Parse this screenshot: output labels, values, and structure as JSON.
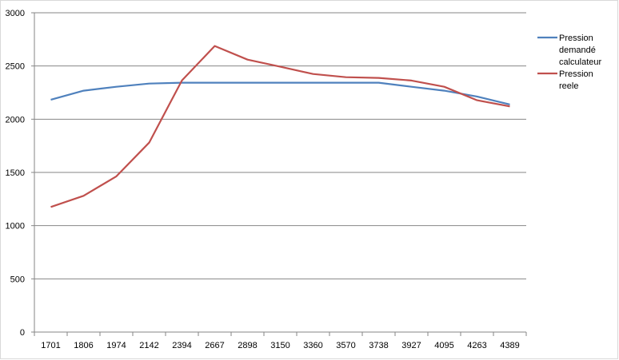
{
  "chart_data": {
    "type": "line",
    "categories": [
      "1701",
      "1806",
      "1974",
      "2142",
      "2394",
      "2667",
      "2898",
      "3150",
      "3360",
      "3570",
      "3738",
      "3927",
      "4095",
      "4263",
      "4389"
    ],
    "series": [
      {
        "name": "Pression demandé calculateur",
        "color": "#4f81bd",
        "values": [
          2183,
          2268,
          2305,
          2335,
          2343,
          2343,
          2343,
          2343,
          2343,
          2343,
          2343,
          2305,
          2268,
          2213,
          2138
        ]
      },
      {
        "name": "Pression reele",
        "color": "#c0504d",
        "values": [
          1175,
          1280,
          1463,
          1780,
          2365,
          2688,
          2560,
          2493,
          2425,
          2395,
          2388,
          2363,
          2305,
          2178,
          2120
        ]
      }
    ],
    "yticks": [
      "0",
      "500",
      "1000",
      "1500",
      "2000",
      "2500",
      "3000"
    ],
    "ylim": [
      0,
      3000
    ],
    "grid": true,
    "legend": "right",
    "legend_lines": [
      [
        "Pression",
        "demandé",
        "calculateur"
      ],
      [
        "Pression",
        "reele"
      ]
    ]
  }
}
